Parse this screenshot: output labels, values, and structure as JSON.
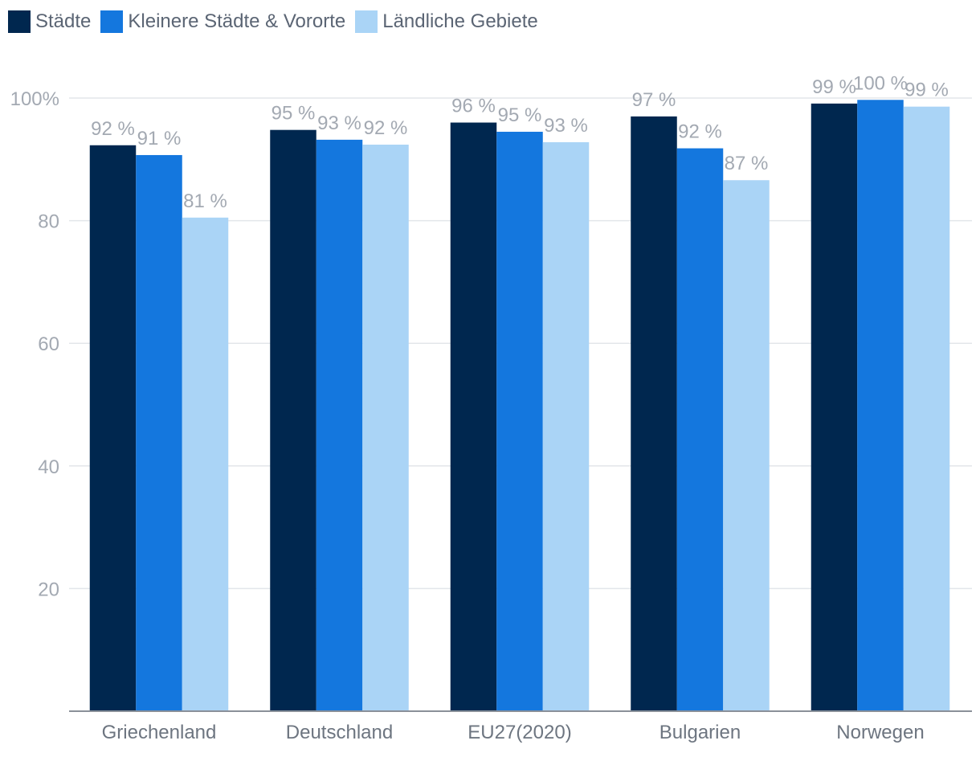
{
  "chart_data": {
    "type": "bar",
    "title": "",
    "xlabel": "",
    "ylabel": "",
    "ylim": [
      0,
      100
    ],
    "yticks": [
      {
        "value": 20,
        "label": "20"
      },
      {
        "value": 40,
        "label": "40"
      },
      {
        "value": 60,
        "label": "60"
      },
      {
        "value": 80,
        "label": "80"
      },
      {
        "value": 100,
        "label": "100%"
      }
    ],
    "categories": [
      "Griechenland",
      "Deutschland",
      "EU27(2020)",
      "Bulgarien",
      "Norwegen"
    ],
    "series": [
      {
        "name": "Städte",
        "color": "#00274f",
        "values": [
          92.3,
          94.8,
          96.0,
          97.0,
          99.1
        ],
        "labels": [
          "92 %",
          "95 %",
          "96 %",
          "97 %",
          "99 %"
        ]
      },
      {
        "name": "Kleinere Städte & Vororte",
        "color": "#1477de",
        "values": [
          90.7,
          93.2,
          94.5,
          91.8,
          99.7
        ],
        "labels": [
          "91 %",
          "93 %",
          "95 %",
          "92 %",
          "100 %"
        ]
      },
      {
        "name": "Ländliche Gebiete",
        "color": "#aad4f6",
        "values": [
          80.5,
          92.4,
          92.8,
          86.6,
          98.6
        ],
        "labels": [
          "81 %",
          "92 %",
          "93 %",
          "87 %",
          "99 %"
        ]
      }
    ],
    "legend_position": "top-left",
    "grid": true
  }
}
